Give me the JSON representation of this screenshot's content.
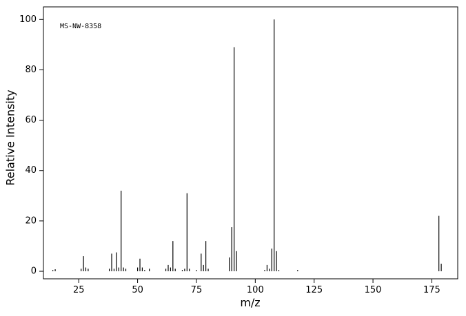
{
  "chart_data": {
    "type": "bar",
    "annotation": "MS-NW-8358",
    "x_label": "m/z",
    "y_label": "Relative Intensity",
    "x": [
      14,
      15,
      26,
      27,
      28,
      29,
      38,
      39,
      40,
      41,
      42,
      43,
      44,
      45,
      50,
      51,
      52,
      53,
      55,
      62,
      63,
      64,
      65,
      66,
      69,
      70,
      71,
      72,
      75,
      77,
      78,
      79,
      80,
      89,
      90,
      91,
      92,
      104,
      105,
      106,
      107,
      108,
      109,
      110,
      118,
      178,
      179
    ],
    "values": [
      0.5,
      0.8,
      1,
      6,
      1.5,
      1,
      1,
      7,
      1,
      7.5,
      1.5,
      32,
      1.5,
      1,
      1.5,
      5,
      1.5,
      0.5,
      1,
      1,
      2.5,
      1.5,
      12,
      1,
      0.5,
      1,
      31,
      1,
      0.5,
      7,
      2.5,
      12,
      1,
      5.5,
      17.5,
      89,
      8,
      0.5,
      2.5,
      1,
      9,
      100,
      8,
      0.5,
      0.5,
      22,
      3
    ],
    "color": "#000000",
    "xlim": [
      10,
      186
    ],
    "xticks": [
      25,
      50,
      75,
      100,
      125,
      150,
      175
    ],
    "ylim": [
      -3,
      105
    ],
    "yticks": [
      0,
      20,
      40,
      60,
      80,
      100
    ]
  }
}
